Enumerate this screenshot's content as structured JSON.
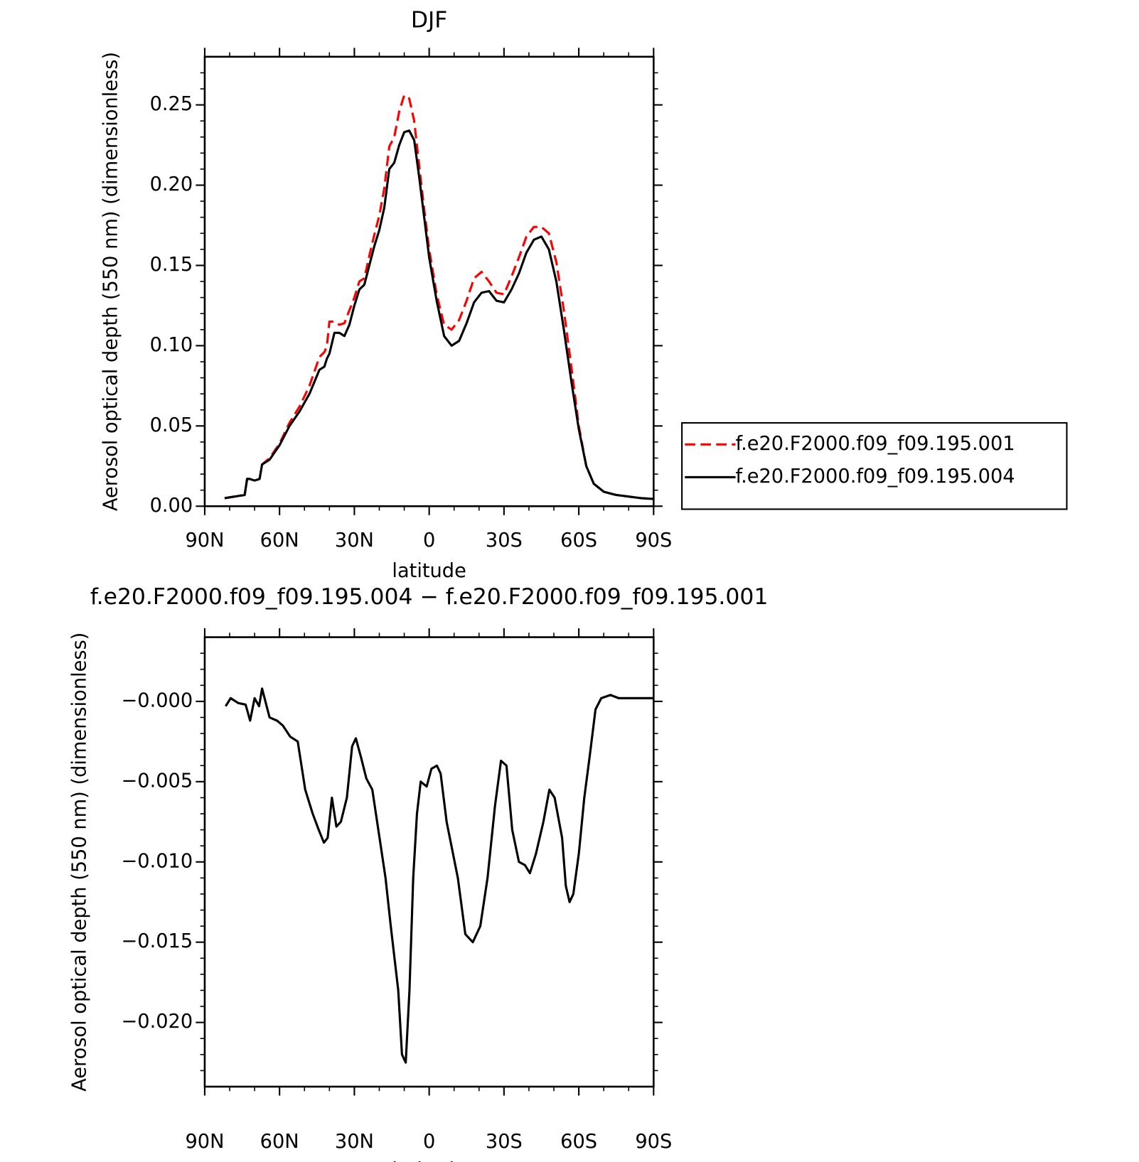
{
  "chart_data": [
    {
      "type": "line",
      "title": "DJF",
      "xlabel": "latitude",
      "ylabel": "Aerosol optical depth (550 nm) (dimensionless)",
      "x": [
        82,
        78,
        74,
        73,
        72,
        70,
        68,
        67,
        64,
        60,
        56,
        52,
        48,
        44,
        42,
        41,
        40,
        38,
        36,
        34,
        32,
        30,
        28,
        26,
        24,
        22,
        20,
        18,
        16,
        14,
        12,
        10,
        8,
        6,
        4,
        2,
        0,
        -3,
        -6,
        -9,
        -12,
        -15,
        -18,
        -21,
        -24,
        -27,
        -30,
        -33,
        -36,
        -39,
        -42,
        -45,
        -48,
        -51,
        -54,
        -57,
        -60,
        -63,
        -66,
        -70,
        -75,
        -80,
        -85,
        -90
      ],
      "series": [
        {
          "name": "f.e20.F2000.f09_f09.195.001",
          "color": "#ff0000",
          "linestyle": "dashed",
          "values": [
            0.005,
            0.006,
            0.007,
            0.017,
            0.017,
            0.016,
            0.017,
            0.026,
            0.03,
            0.039,
            0.052,
            0.062,
            0.075,
            0.093,
            0.096,
            0.1,
            0.115,
            0.115,
            0.113,
            0.114,
            0.122,
            0.13,
            0.14,
            0.142,
            0.156,
            0.169,
            0.181,
            0.198,
            0.224,
            0.23,
            0.246,
            0.256,
            0.254,
            0.24,
            0.212,
            0.185,
            0.16,
            0.132,
            0.113,
            0.11,
            0.116,
            0.128,
            0.142,
            0.146,
            0.14,
            0.133,
            0.132,
            0.143,
            0.155,
            0.168,
            0.174,
            0.174,
            0.17,
            0.152,
            0.122,
            0.087,
            0.05,
            0.025,
            0.014,
            0.009,
            0.007,
            0.006,
            0.005,
            0.0045
          ]
        },
        {
          "name": "f.e20.F2000.f09_f09.195.004",
          "color": "#000000",
          "linestyle": "solid",
          "values": [
            0.005,
            0.006,
            0.007,
            0.017,
            0.017,
            0.016,
            0.017,
            0.026,
            0.029,
            0.038,
            0.05,
            0.059,
            0.07,
            0.085,
            0.087,
            0.092,
            0.095,
            0.108,
            0.108,
            0.106,
            0.113,
            0.125,
            0.135,
            0.138,
            0.15,
            0.162,
            0.172,
            0.186,
            0.21,
            0.214,
            0.225,
            0.233,
            0.234,
            0.228,
            0.205,
            0.18,
            0.155,
            0.128,
            0.106,
            0.1,
            0.103,
            0.114,
            0.127,
            0.133,
            0.134,
            0.128,
            0.127,
            0.135,
            0.145,
            0.158,
            0.166,
            0.168,
            0.16,
            0.14,
            0.11,
            0.078,
            0.048,
            0.025,
            0.014,
            0.009,
            0.007,
            0.006,
            0.005,
            0.0045
          ]
        }
      ],
      "xlim": [
        90,
        -90
      ],
      "xticks": [
        {
          "value": 90,
          "label": "90N"
        },
        {
          "value": 60,
          "label": "60N"
        },
        {
          "value": 30,
          "label": "30N"
        },
        0,
        {
          "value": -30,
          "label": "30S"
        },
        {
          "value": -60,
          "label": "60S"
        },
        {
          "value": -90,
          "label": "90S"
        }
      ],
      "xminorticks": [
        80,
        70,
        50,
        40,
        20,
        10,
        -10,
        -20,
        -40,
        -50,
        -70,
        -80
      ],
      "ylim": [
        0,
        0.28
      ],
      "yticks": [
        {
          "value": 0,
          "label": "0.00"
        },
        {
          "value": 0.05,
          "label": "0.05"
        },
        {
          "value": 0.1,
          "label": "0.10"
        },
        {
          "value": 0.15,
          "label": "0.15"
        },
        {
          "value": 0.2,
          "label": "0.20"
        },
        {
          "value": 0.25,
          "label": "0.25"
        }
      ],
      "yminorticks": [
        0.01,
        0.02,
        0.03,
        0.04,
        0.06,
        0.07,
        0.08,
        0.09,
        0.11,
        0.12,
        0.13,
        0.14,
        0.16,
        0.17,
        0.18,
        0.19,
        0.21,
        0.22,
        0.23,
        0.24,
        0.26,
        0.27
      ],
      "legend": "right"
    },
    {
      "type": "line",
      "title": "f.e20.F2000.f09_f09.195.004 − f.e20.F2000.f09_f09.195.001",
      "xlabel": "latitude",
      "ylabel": "Aerosol optical depth (550 nm) (dimensionless)",
      "x": [
        81.6,
        79.6,
        76.6,
        73.6,
        71.8,
        70,
        68.2,
        67,
        64,
        61,
        58.7,
        55.7,
        52.7,
        49.7,
        46.7,
        44.3,
        42.2,
        40.7,
        39,
        37.2,
        35.4,
        33,
        30.9,
        29.4,
        27.3,
        25.2,
        22.8,
        19.9,
        17.5,
        15.4,
        12.4,
        10.9,
        9.4,
        7.9,
        6.4,
        4.9,
        3.4,
        1,
        -0.9,
        -3.1,
        -4.6,
        -7,
        -11.5,
        -14.5,
        -17.5,
        -20.5,
        -23.4,
        -26.4,
        -28.8,
        -31,
        -33.3,
        -36,
        -38.4,
        -40.4,
        -42.8,
        -45.8,
        -48.2,
        -50.3,
        -53.3,
        -54.8,
        -56.3,
        -57.8,
        -60,
        -62.2,
        -64.3,
        -66.7,
        -69,
        -72.7,
        -76,
        -90
      ],
      "series": [
        {
          "color": "#000000",
          "linestyle": "solid",
          "values": [
            -0.0003,
            0.0002,
            -0.0001,
            -0.0002,
            -0.0012,
            0.0002,
            -0.0003,
            0.0008,
            -0.001,
            -0.0012,
            -0.0015,
            -0.0022,
            -0.0025,
            -0.0055,
            -0.007,
            -0.008,
            -0.0088,
            -0.0085,
            -0.006,
            -0.0078,
            -0.0075,
            -0.006,
            -0.0028,
            -0.0023,
            -0.0035,
            -0.0048,
            -0.0055,
            -0.0085,
            -0.011,
            -0.014,
            -0.018,
            -0.022,
            -0.0225,
            -0.018,
            -0.011,
            -0.007,
            -0.005,
            -0.0053,
            -0.0042,
            -0.004,
            -0.0045,
            -0.0075,
            -0.011,
            -0.0145,
            -0.015,
            -0.014,
            -0.011,
            -0.0065,
            -0.0037,
            -0.004,
            -0.008,
            -0.01,
            -0.0102,
            -0.0107,
            -0.0095,
            -0.0075,
            -0.0055,
            -0.006,
            -0.0085,
            -0.0115,
            -0.0125,
            -0.012,
            -0.0095,
            -0.006,
            -0.0035,
            -0.0005,
            0.0002,
            0.0004,
            0.0002,
            0.0002
          ]
        }
      ],
      "xlim": [
        90,
        -90
      ],
      "xticks": [
        {
          "value": 90,
          "label": "90N"
        },
        {
          "value": 60,
          "label": "60N"
        },
        {
          "value": 30,
          "label": "30N"
        },
        0,
        {
          "value": -30,
          "label": "30S"
        },
        {
          "value": -60,
          "label": "60S"
        },
        {
          "value": -90,
          "label": "90S"
        }
      ],
      "xminorticks": [
        80,
        70,
        50,
        40,
        20,
        10,
        -10,
        -20,
        -40,
        -50,
        -70,
        -80
      ],
      "ylim": [
        -0.024,
        0.004
      ],
      "yticks": [
        {
          "value": 0,
          "label": "−0.000"
        },
        {
          "value": -0.005,
          "label": "−0.005"
        },
        {
          "value": -0.01,
          "label": "−0.010"
        },
        {
          "value": -0.015,
          "label": "−0.015"
        },
        {
          "value": -0.02,
          "label": "−0.020"
        }
      ],
      "yminorticks": [
        0.003,
        0.002,
        0.001,
        -0.001,
        -0.002,
        -0.003,
        -0.004,
        -0.006,
        -0.007,
        -0.008,
        -0.009,
        -0.011,
        -0.012,
        -0.013,
        -0.014,
        -0.016,
        -0.017,
        -0.018,
        -0.019,
        -0.021,
        -0.022,
        -0.023
      ]
    }
  ]
}
